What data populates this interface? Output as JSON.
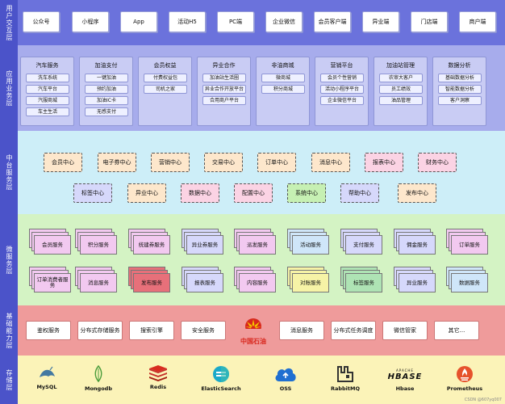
{
  "layers": {
    "interaction": {
      "label": "用户交互层",
      "items": [
        "公众号",
        "小程序",
        "App",
        "活动H5",
        "PC端",
        "企业微信",
        "会员客户端",
        "异业端",
        "门店端",
        "商户端"
      ]
    },
    "application": {
      "label": "应用业务层",
      "groups": [
        {
          "title": "汽车服务",
          "items": [
            "洗车系统",
            "汽车平台",
            "汽服商城",
            "车主生活"
          ]
        },
        {
          "title": "加油支付",
          "items": [
            "一键加油",
            "预约加油",
            "加油IC卡",
            "无感支付"
          ]
        },
        {
          "title": "会员权益",
          "items": [
            "付费权益包",
            "司机之家"
          ]
        },
        {
          "title": "异业合作",
          "items": [
            "加油站生活圈",
            "异业合作开放平台",
            "合用商户平台"
          ]
        },
        {
          "title": "非油商城",
          "items": [
            "微商城",
            "积分商城"
          ]
        },
        {
          "title": "营销平台",
          "items": [
            "会员个性营销",
            "活动小程序平台",
            "企业微信平台"
          ]
        },
        {
          "title": "加油站管理",
          "items": [
            "农审大客户",
            "员工绩效",
            "油品管理"
          ]
        },
        {
          "title": "数据分析",
          "items": [
            "基础数据分析",
            "智能数据分析",
            "客户洞察"
          ]
        }
      ]
    },
    "middle": {
      "label": "中台服务层",
      "row1": [
        "会员中心",
        "电子券中心",
        "营销中心",
        "交易中心",
        "订单中心",
        "消息中心",
        "报表中心",
        "财务中心"
      ],
      "row2": [
        "标签中心",
        "异业中心",
        "数据中心",
        "配置中心",
        "系统中心",
        "帮助中心",
        "发布中心"
      ]
    },
    "micro": {
      "label": "微服务层",
      "row1": [
        "会员服务",
        "积分服务",
        "统建券服务",
        "异业券服务",
        "派发服务",
        "活动服务",
        "支付服务",
        "佣金服务",
        "订单服务"
      ],
      "row2": [
        "订单消费者服务",
        "消息服务",
        "发布服务",
        "报表服务",
        "内容服务",
        "对账服务",
        "标签服务",
        "异业服务",
        "数据服务"
      ]
    },
    "infra": {
      "label": "基础能力层",
      "items": [
        "鉴权服务",
        "分布式存储服务",
        "搜索引擎",
        "安全服务",
        "消息服务",
        "分布式任务调度",
        "微信管家",
        "其它..."
      ],
      "logo_text": "中国石油"
    },
    "storage": {
      "label": "存储层",
      "items": [
        "MySQL",
        "Mongodb",
        "Redis",
        "ElasticSearch",
        "OSS",
        "RabbitMQ",
        "Hbase",
        "Prometheus"
      ],
      "hbase_logo_small": "APACHE",
      "hbase_logo_big": "HBASE"
    }
  },
  "colors": {
    "label_bg": "#4b53c9",
    "interaction_bg": "#6b72dc",
    "application_bg": "#a7acec",
    "middle_bg": "#cdeef8",
    "micro_bg": "#d4f3c4",
    "infra_bg": "#ef9b9b",
    "storage_bg": "#fbf3b8"
  },
  "watermark": "CSDN @607yq007"
}
